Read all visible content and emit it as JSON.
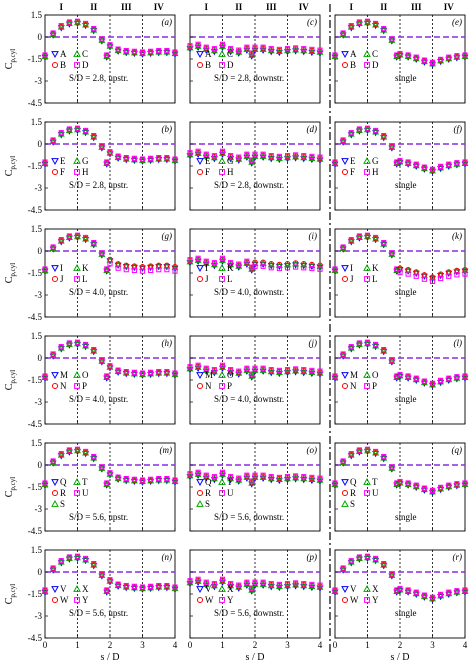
{
  "figure": {
    "x_axis_label": "s / D",
    "y_axis_label": "C",
    "y_axis_label_sub": "p,cyl",
    "y_ticks": [
      "1.5",
      "0",
      "-1.5",
      "-3",
      "-4.5"
    ],
    "x_ticks": [
      "0",
      "1",
      "2",
      "3",
      "4"
    ],
    "region_labels": [
      "I",
      "II",
      "III",
      "IV"
    ]
  },
  "colors": {
    "region_label": "#cc0000",
    "dashed_zero_line": "#8a2be2",
    "frame": "#000000",
    "series_a": "#0000ff",
    "series_b": "#00aa00",
    "series_c": "#ff0000",
    "series_d": "#ff00ff"
  },
  "marker_legend": {
    "symbols": [
      "triangle-down",
      "triangle-up",
      "circle",
      "square"
    ],
    "colors": [
      "#0000ff",
      "#00aa00",
      "#ff0000",
      "#ff00ff"
    ]
  },
  "panels": [
    {
      "letter": "(a)",
      "legend": [
        "A",
        "C",
        "B",
        "D"
      ],
      "caption": "S/D = 2.8, upstr."
    },
    {
      "letter": "(c)",
      "legend": [
        "A",
        "C",
        "B",
        "D"
      ],
      "caption": "S/D = 2.8, downstr."
    },
    {
      "letter": "(e)",
      "legend": [
        "A",
        "C",
        "B",
        "D"
      ],
      "caption": "single"
    },
    {
      "letter": "(b)",
      "legend": [
        "E",
        "G",
        "F",
        "H"
      ],
      "caption": "S/D = 2.8, upstr."
    },
    {
      "letter": "(d)",
      "legend": [
        "E",
        "G",
        "F",
        "H"
      ],
      "caption": "S/D = 2.8, downstr."
    },
    {
      "letter": "(f)",
      "legend": [
        "E",
        "G",
        "F",
        "H"
      ],
      "caption": "single"
    },
    {
      "letter": "(g)",
      "legend": [
        "I",
        "K",
        "J",
        "L"
      ],
      "caption": "S/D = 4.0, upstr."
    },
    {
      "letter": "(i)",
      "legend": [
        "I",
        "K",
        "J",
        "L"
      ],
      "caption": "S/D = 4.0, downstr."
    },
    {
      "letter": "(k)",
      "legend": [
        "I",
        "K",
        "J",
        "L"
      ],
      "caption": "single"
    },
    {
      "letter": "(h)",
      "legend": [
        "M",
        "O",
        "N",
        "P"
      ],
      "caption": "S/D = 4.0, upstr."
    },
    {
      "letter": "(j)",
      "legend": [
        "M",
        "O",
        "N",
        "P"
      ],
      "caption": "S/D = 4.0, downstr."
    },
    {
      "letter": "(l)",
      "legend": [
        "M",
        "O",
        "N",
        "P"
      ],
      "caption": "single"
    },
    {
      "letter": "(m)",
      "legend": [
        "Q",
        "T",
        "R",
        "U",
        "S"
      ],
      "caption": "S/D = 5.6, upstr."
    },
    {
      "letter": "(o)",
      "legend": [
        "Q",
        "T",
        "R",
        "U",
        "S"
      ],
      "caption": "S/D = 5.6, downstr."
    },
    {
      "letter": "(q)",
      "legend": [
        "Q",
        "T",
        "R",
        "U",
        "S"
      ],
      "caption": "single"
    },
    {
      "letter": "(n)",
      "legend": [
        "V",
        "X",
        "W",
        "Y"
      ],
      "caption": "S/D = 5.6, upstr."
    },
    {
      "letter": "(p)",
      "legend": [
        "V",
        "X",
        "W",
        "Y"
      ],
      "caption": "S/D = 5.6, downstr."
    },
    {
      "letter": "(r)",
      "legend": [
        "V",
        "X",
        "W",
        "Y"
      ],
      "caption": "single"
    }
  ],
  "chart_data": {
    "type": "scatter",
    "xlabel": "s / D",
    "ylabel": "Cp,cyl",
    "xlim": [
      0,
      4
    ],
    "ylim": [
      -4.5,
      1.5
    ],
    "region_boundaries": [
      1,
      2,
      3
    ],
    "reference_line_y": 0,
    "region_labels": [
      "I",
      "II",
      "III",
      "IV"
    ],
    "upstream_profile": {
      "x": [
        0,
        0.25,
        0.5,
        0.75,
        1.0,
        1.25,
        1.5,
        1.75,
        1.9,
        2.0,
        2.25,
        2.5,
        2.75,
        3.0,
        3.25,
        3.5,
        3.75,
        4.0
      ],
      "y": [
        -1.3,
        0.2,
        0.7,
        0.95,
        1.0,
        0.85,
        0.5,
        -0.2,
        -1.3,
        -0.6,
        -0.9,
        -1.0,
        -1.05,
        -1.1,
        -1.05,
        -1.0,
        -1.0,
        -1.1
      ]
    },
    "downstream_profile": {
      "x": [
        0,
        0.25,
        0.5,
        0.75,
        1.0,
        1.25,
        1.5,
        1.75,
        1.9,
        2.0,
        2.25,
        2.5,
        2.75,
        3.0,
        3.25,
        3.5,
        3.75,
        4.0
      ],
      "y": [
        -0.7,
        -0.6,
        -0.8,
        -0.9,
        -0.6,
        -0.9,
        -1.0,
        -0.8,
        -1.2,
        -0.8,
        -0.8,
        -0.9,
        -0.95,
        -0.9,
        -0.85,
        -0.9,
        -0.95,
        -1.0
      ]
    },
    "single_profile": {
      "x": [
        0,
        0.25,
        0.5,
        0.75,
        1.0,
        1.25,
        1.5,
        1.75,
        1.9,
        2.0,
        2.25,
        2.5,
        2.75,
        3.0,
        3.25,
        3.5,
        3.75,
        4.0
      ],
      "y": [
        -1.3,
        0.2,
        0.7,
        0.95,
        1.0,
        0.85,
        0.5,
        -0.2,
        -1.3,
        -1.2,
        -1.3,
        -1.45,
        -1.65,
        -1.8,
        -1.6,
        -1.45,
        -1.35,
        -1.3
      ]
    }
  }
}
